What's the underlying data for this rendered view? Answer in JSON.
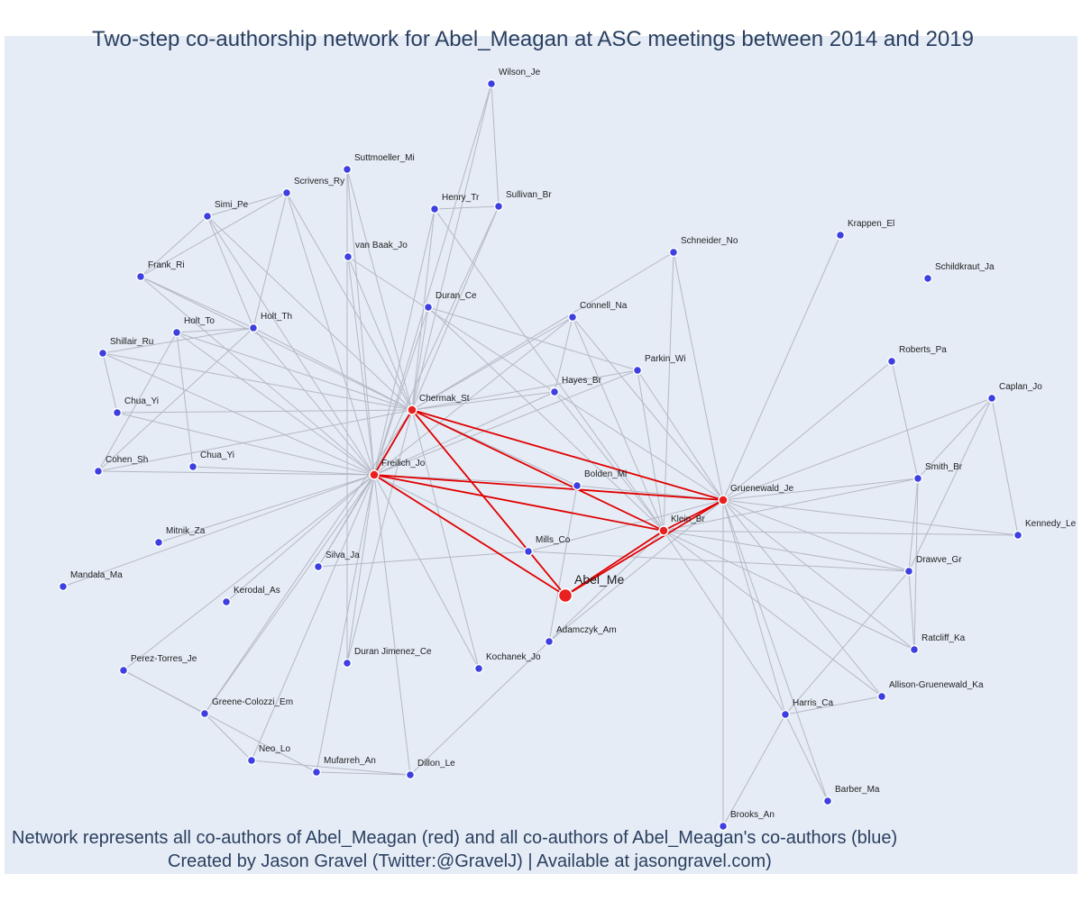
{
  "title": "Two-step co-authorship network for Abel_Meagan at ASC meetings between 2014 and 2019",
  "caption": {
    "line1": "Network represents all co-authors of Abel_Meagan (red) and all co-authors of Abel_Meagan's co-authors (blue)",
    "line2": "Created by Jason Gravel (Twitter:@GravelJ) | Available at jasongravel.com)"
  },
  "colors": {
    "coauthor": "#e82020",
    "second_step": "#3d3fe0",
    "edge": "#b5b8c4",
    "red_edge": "#e00000",
    "background": "#e5ecf6"
  },
  "nodes": [
    {
      "id": "Abel_Me",
      "label": "Abel_Me",
      "type": "focal"
    },
    {
      "id": "Chermak_St",
      "label": "Chermak_St",
      "type": "coauthor"
    },
    {
      "id": "Freilich_Jo",
      "label": "Freilich_Jo",
      "type": "coauthor"
    },
    {
      "id": "Gruenewald_Je",
      "label": "Gruenewald_Je",
      "type": "coauthor"
    },
    {
      "id": "Klein_Br",
      "label": "Klein_Br",
      "type": "coauthor"
    },
    {
      "id": "Wilson_Je",
      "label": "Wilson_Je",
      "type": "second"
    },
    {
      "id": "Suttmoeller_Mi",
      "label": "Suttmoeller_Mi",
      "type": "second"
    },
    {
      "id": "Scrivens_Ry",
      "label": "Scrivens_Ry",
      "type": "second"
    },
    {
      "id": "Henry_Tr",
      "label": "Henry_Tr",
      "type": "second"
    },
    {
      "id": "Sullivan_Br",
      "label": "Sullivan_Br",
      "type": "second"
    },
    {
      "id": "Simi_Pe",
      "label": "Simi_Pe",
      "type": "second"
    },
    {
      "id": "Krappen_El",
      "label": "Krappen_El",
      "type": "second"
    },
    {
      "id": "Schneider_No",
      "label": "Schneider_No",
      "type": "second"
    },
    {
      "id": "van_Baak_Jo",
      "label": "van Baak_Jo",
      "type": "second"
    },
    {
      "id": "Frank_Ri",
      "label": "Frank_Ri",
      "type": "second"
    },
    {
      "id": "Schildkraut_Ja",
      "label": "Schildkraut_Ja",
      "type": "second"
    },
    {
      "id": "Duran_Ce",
      "label": "Duran_Ce",
      "type": "second"
    },
    {
      "id": "Connell_Na",
      "label": "Connell_Na",
      "type": "second"
    },
    {
      "id": "Holt_Th",
      "label": "Holt_Th",
      "type": "second"
    },
    {
      "id": "Holt_To",
      "label": "Holt_To",
      "type": "second"
    },
    {
      "id": "Shillair_Ru",
      "label": "Shillair_Ru",
      "type": "second"
    },
    {
      "id": "Roberts_Pa",
      "label": "Roberts_Pa",
      "type": "second"
    },
    {
      "id": "Parkin_Wi",
      "label": "Parkin_Wi",
      "type": "second"
    },
    {
      "id": "Hayes_Br",
      "label": "Hayes_Br",
      "type": "second"
    },
    {
      "id": "Caplan_Jo",
      "label": "Caplan_Jo",
      "type": "second"
    },
    {
      "id": "Chua_Yi_1",
      "label": "Chua_Yi",
      "type": "second"
    },
    {
      "id": "Cohen_Sh",
      "label": "Cohen_Sh",
      "type": "second"
    },
    {
      "id": "Chua_Yi_2",
      "label": "Chua_Yi",
      "type": "second"
    },
    {
      "id": "Smith_Br",
      "label": "Smith_Br",
      "type": "second"
    },
    {
      "id": "Bolden_Mi",
      "label": "Bolden_Mi",
      "type": "second"
    },
    {
      "id": "Kennedy_Le",
      "label": "Kennedy_Le",
      "type": "second"
    },
    {
      "id": "Mitnik_Za",
      "label": "Mitnik_Za",
      "type": "second"
    },
    {
      "id": "Mills_Co",
      "label": "Mills_Co",
      "type": "second"
    },
    {
      "id": "Silva_Ja",
      "label": "Silva_Ja",
      "type": "second"
    },
    {
      "id": "Drawve_Gr",
      "label": "Drawve_Gr",
      "type": "second"
    },
    {
      "id": "Mandala_Ma",
      "label": "Mandala_Ma",
      "type": "second"
    },
    {
      "id": "Kerodal_As",
      "label": "Kerodal_As",
      "type": "second"
    },
    {
      "id": "Adamczyk_Am",
      "label": "Adamczyk_Am",
      "type": "second"
    },
    {
      "id": "Ratcliff_Ka",
      "label": "Ratcliff_Ka",
      "type": "second"
    },
    {
      "id": "Kochanek_Jo",
      "label": "Kochanek_Jo",
      "type": "second"
    },
    {
      "id": "Duran_Jimenez_Ce",
      "label": "Duran Jimenez_Ce",
      "type": "second"
    },
    {
      "id": "Perez_Torres_Je",
      "label": "Perez-Torres_Je",
      "type": "second"
    },
    {
      "id": "Allison_Gruenewald_Ka",
      "label": "Allison-Gruenewald_Ka",
      "type": "second"
    },
    {
      "id": "Greene_Colozzi_Em",
      "label": "Greene-Colozzi_Em",
      "type": "second"
    },
    {
      "id": "Harris_Ca",
      "label": "Harris_Ca",
      "type": "second"
    },
    {
      "id": "Neo_Lo",
      "label": "Neo_Lo",
      "type": "second"
    },
    {
      "id": "Mufarreh_An",
      "label": "Mufarreh_An",
      "type": "second"
    },
    {
      "id": "Dillon_Le",
      "label": "Dillon_Le",
      "type": "second"
    },
    {
      "id": "Barber_Ma",
      "label": "Barber_Ma",
      "type": "second"
    },
    {
      "id": "Brooks_An",
      "label": "Brooks_An",
      "type": "second"
    }
  ],
  "edges": [
    [
      "Abel_Me",
      "Freilich_Jo"
    ],
    [
      "Abel_Me",
      "Chermak_St"
    ],
    [
      "Abel_Me",
      "Klein_Br"
    ],
    [
      "Abel_Me",
      "Gruenewald_Je"
    ],
    [
      "Freilich_Jo",
      "Chermak_St"
    ],
    [
      "Freilich_Jo",
      "Gruenewald_Je"
    ],
    [
      "Freilich_Jo",
      "Klein_Br"
    ],
    [
      "Chermak_St",
      "Gruenewald_Je"
    ],
    [
      "Chermak_St",
      "Klein_Br"
    ],
    [
      "Klein_Br",
      "Gruenewald_Je"
    ],
    [
      "Chermak_St",
      "Wilson_Je"
    ],
    [
      "Chermak_St",
      "Suttmoeller_Mi"
    ],
    [
      "Chermak_St",
      "Scrivens_Ry"
    ],
    [
      "Chermak_St",
      "Henry_Tr"
    ],
    [
      "Chermak_St",
      "Sullivan_Br"
    ],
    [
      "Chermak_St",
      "Simi_Pe"
    ],
    [
      "Chermak_St",
      "van_Baak_Jo"
    ],
    [
      "Chermak_St",
      "Frank_Ri"
    ],
    [
      "Chermak_St",
      "Duran_Ce"
    ],
    [
      "Chermak_St",
      "Connell_Na"
    ],
    [
      "Chermak_St",
      "Holt_Th"
    ],
    [
      "Chermak_St",
      "Holt_To"
    ],
    [
      "Chermak_St",
      "Shillair_Ru"
    ],
    [
      "Chermak_St",
      "Chua_Yi_1"
    ],
    [
      "Chermak_St",
      "Cohen_Sh"
    ],
    [
      "Chermak_St",
      "Hayes_Br"
    ],
    [
      "Chermak_St",
      "Parkin_Wi"
    ],
    [
      "Chermak_St",
      "Bolden_Mi"
    ],
    [
      "Chermak_St",
      "Silva_Ja"
    ],
    [
      "Chermak_St",
      "Kochanek_Jo"
    ],
    [
      "Chermak_St",
      "Greene_Colozzi_Em"
    ],
    [
      "Chermak_St",
      "Duran_Jimenez_Ce"
    ],
    [
      "Freilich_Jo",
      "Wilson_Je"
    ],
    [
      "Freilich_Jo",
      "Suttmoeller_Mi"
    ],
    [
      "Freilich_Jo",
      "Scrivens_Ry"
    ],
    [
      "Freilich_Jo",
      "Henry_Tr"
    ],
    [
      "Freilich_Jo",
      "Sullivan_Br"
    ],
    [
      "Freilich_Jo",
      "Simi_Pe"
    ],
    [
      "Freilich_Jo",
      "van_Baak_Jo"
    ],
    [
      "Freilich_Jo",
      "Frank_Ri"
    ],
    [
      "Freilich_Jo",
      "Duran_Ce"
    ],
    [
      "Freilich_Jo",
      "Connell_Na"
    ],
    [
      "Freilich_Jo",
      "Holt_Th"
    ],
    [
      "Freilich_Jo",
      "Holt_To"
    ],
    [
      "Freilich_Jo",
      "Shillair_Ru"
    ],
    [
      "Freilich_Jo",
      "Chua_Yi_1"
    ],
    [
      "Freilich_Jo",
      "Cohen_Sh"
    ],
    [
      "Freilich_Jo",
      "Chua_Yi_2"
    ],
    [
      "Freilich_Jo",
      "Mitnik_Za"
    ],
    [
      "Freilich_Jo",
      "Mandala_Ma"
    ],
    [
      "Freilich_Jo",
      "Kerodal_As"
    ],
    [
      "Freilich_Jo",
      "Silva_Ja"
    ],
    [
      "Freilich_Jo",
      "Perez_Torres_Je"
    ],
    [
      "Freilich_Jo",
      "Greene_Colozzi_Em"
    ],
    [
      "Freilich_Jo",
      "Neo_Lo"
    ],
    [
      "Freilich_Jo",
      "Mufarreh_An"
    ],
    [
      "Freilich_Jo",
      "Dillon_Le"
    ],
    [
      "Freilich_Jo",
      "Duran_Jimenez_Ce"
    ],
    [
      "Freilich_Jo",
      "Kochanek_Jo"
    ],
    [
      "Freilich_Jo",
      "Mills_Co"
    ],
    [
      "Freilich_Jo",
      "Bolden_Mi"
    ],
    [
      "Freilich_Jo",
      "Hayes_Br"
    ],
    [
      "Freilich_Jo",
      "Parkin_Wi"
    ],
    [
      "Gruenewald_Je",
      "Krappen_El"
    ],
    [
      "Gruenewald_Je",
      "Schneider_No"
    ],
    [
      "Gruenewald_Je",
      "Parkin_Wi"
    ],
    [
      "Gruenewald_Je",
      "Roberts_Pa"
    ],
    [
      "Gruenewald_Je",
      "Caplan_Jo"
    ],
    [
      "Gruenewald_Je",
      "Smith_Br"
    ],
    [
      "Gruenewald_Je",
      "Kennedy_Le"
    ],
    [
      "Gruenewald_Je",
      "Drawve_Gr"
    ],
    [
      "Gruenewald_Je",
      "Ratcliff_Ka"
    ],
    [
      "Gruenewald_Je",
      "Allison_Gruenewald_Ka"
    ],
    [
      "Gruenewald_Je",
      "Harris_Ca"
    ],
    [
      "Gruenewald_Je",
      "Barber_Ma"
    ],
    [
      "Gruenewald_Je",
      "Brooks_An"
    ],
    [
      "Gruenewald_Je",
      "Hayes_Br"
    ],
    [
      "Gruenewald_Je",
      "Bolden_Mi"
    ],
    [
      "Gruenewald_Je",
      "Mills_Co"
    ],
    [
      "Gruenewald_Je",
      "Adamczyk_Am"
    ],
    [
      "Gruenewald_Je",
      "Connell_Na"
    ],
    [
      "Klein_Br",
      "Schneider_No"
    ],
    [
      "Klein_Br",
      "Parkin_Wi"
    ],
    [
      "Klein_Br",
      "Hayes_Br"
    ],
    [
      "Klein_Br",
      "Connell_Na"
    ],
    [
      "Klein_Br",
      "Adamczyk_Am"
    ],
    [
      "Klein_Br",
      "Smith_Br"
    ],
    [
      "Klein_Br",
      "Drawve_Gr"
    ],
    [
      "Klein_Br",
      "Kennedy_Le"
    ],
    [
      "Klein_Br",
      "Ratcliff_Ka"
    ],
    [
      "Klein_Br",
      "Harris_Ca"
    ],
    [
      "Klein_Br",
      "Allison_Gruenewald_Ka"
    ],
    [
      "Klein_Br",
      "Henry_Tr"
    ],
    [
      "Klein_Br",
      "Duran_Ce"
    ],
    [
      "Wilson_Je",
      "Sullivan_Br"
    ],
    [
      "Suttmoeller_Mi",
      "Duran_Jimenez_Ce"
    ],
    [
      "Henry_Tr",
      "Sullivan_Br"
    ],
    [
      "Scrivens_Ry",
      "Simi_Pe"
    ],
    [
      "Scrivens_Ry",
      "Frank_Ri"
    ],
    [
      "Scrivens_Ry",
      "Holt_Th"
    ],
    [
      "Simi_Pe",
      "Holt_Th"
    ],
    [
      "Simi_Pe",
      "Frank_Ri"
    ],
    [
      "Holt_Th",
      "Holt_To"
    ],
    [
      "Holt_Th",
      "Cohen_Sh"
    ],
    [
      "Holt_Th",
      "Shillair_Ru"
    ],
    [
      "Holt_To",
      "Chua_Yi_2"
    ],
    [
      "Holt_To",
      "Cohen_Sh"
    ],
    [
      "Frank_Ri",
      "Holt_Th"
    ],
    [
      "Shillair_Ru",
      "Chua_Yi_1"
    ],
    [
      "Caplan_Jo",
      "Smith_Br"
    ],
    [
      "Caplan_Jo",
      "Drawve_Gr"
    ],
    [
      "Caplan_Jo",
      "Kennedy_Le"
    ],
    [
      "Roberts_Pa",
      "Smith_Br"
    ],
    [
      "Smith_Br",
      "Drawve_Gr"
    ],
    [
      "Smith_Br",
      "Ratcliff_Ka"
    ],
    [
      "Drawve_Gr",
      "Ratcliff_Ka"
    ],
    [
      "Drawve_Gr",
      "Harris_Ca"
    ],
    [
      "Harris_Ca",
      "Allison_Gruenewald_Ka"
    ],
    [
      "Harris_Ca",
      "Brooks_An"
    ],
    [
      "Harris_Ca",
      "Barber_Ma"
    ],
    [
      "Perez_Torres_Je",
      "Greene_Colozzi_Em"
    ],
    [
      "Perez_Torres_Je",
      "Mufarreh_An"
    ],
    [
      "Greene_Colozzi_Em",
      "Neo_Lo"
    ],
    [
      "Neo_Lo",
      "Dillon_Le"
    ],
    [
      "Mufarreh_An",
      "Dillon_Le"
    ],
    [
      "Dillon_Le",
      "Adamczyk_Am"
    ],
    [
      "Adamczyk_Am",
      "Bolden_Mi"
    ],
    [
      "Mills_Co",
      "Silva_Ja"
    ],
    [
      "Mills_Co",
      "Drawve_Gr"
    ],
    [
      "van_Baak_Jo",
      "Hayes_Br"
    ],
    [
      "Duran_Ce",
      "Parkin_Wi"
    ],
    [
      "Schneider_No",
      "Chermak_St"
    ],
    [
      "Connell_Na",
      "Hayes_Br"
    ]
  ]
}
